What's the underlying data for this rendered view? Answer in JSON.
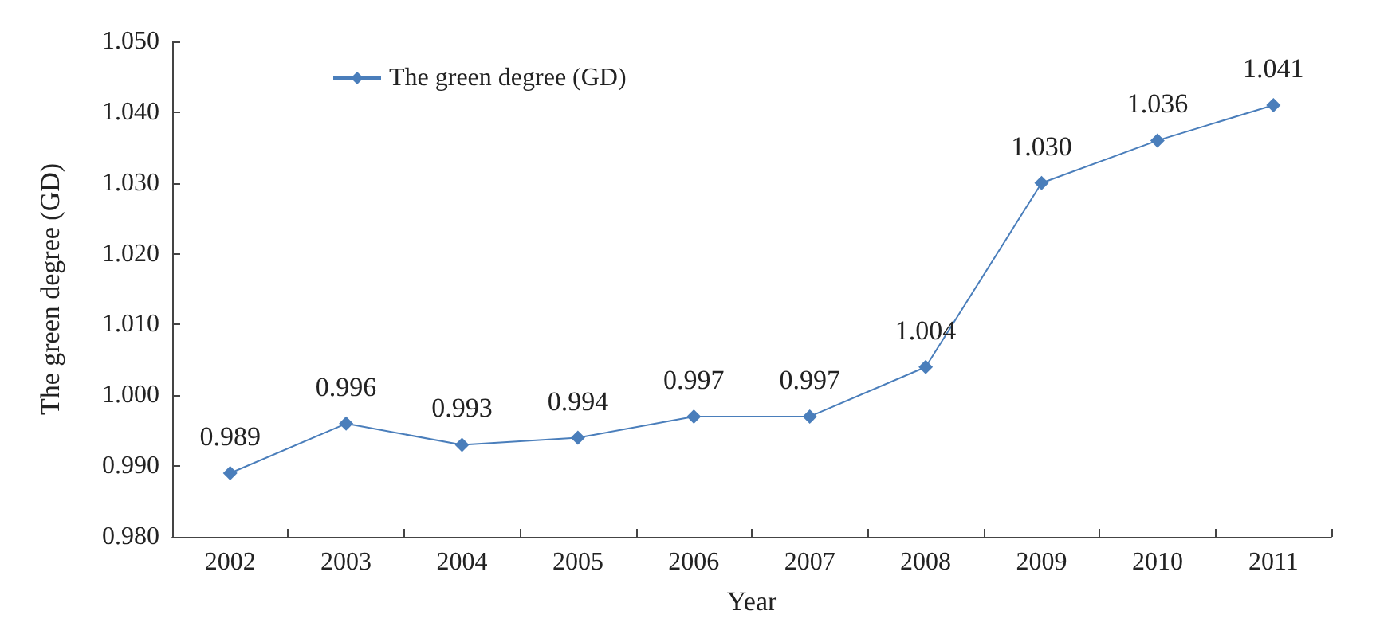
{
  "chart_data": {
    "type": "line",
    "xlabel": "Year",
    "ylabel": "The green degree (GD)",
    "categories": [
      "2002",
      "2003",
      "2004",
      "2005",
      "2006",
      "2007",
      "2008",
      "2009",
      "2010",
      "2011"
    ],
    "series": [
      {
        "name": "The green degree (GD)",
        "color": "#4a7ebb",
        "values": [
          0.989,
          0.996,
          0.993,
          0.994,
          0.997,
          0.997,
          1.004,
          1.03,
          1.036,
          1.041
        ],
        "value_labels": [
          "0.989",
          "0.996",
          "0.993",
          "0.994",
          "0.997",
          "0.997",
          "1.004",
          "1.030",
          "1.036",
          "1.041"
        ]
      }
    ],
    "ylim": [
      0.98,
      1.05
    ],
    "yticks": [
      {
        "value": 0.98,
        "label": "0.980"
      },
      {
        "value": 0.99,
        "label": "0.990"
      },
      {
        "value": 1.0,
        "label": "1.000"
      },
      {
        "value": 1.01,
        "label": "1.010"
      },
      {
        "value": 1.02,
        "label": "1.020"
      },
      {
        "value": 1.03,
        "label": "1.030"
      },
      {
        "value": 1.04,
        "label": "1.040"
      },
      {
        "value": 1.05,
        "label": "1.050"
      }
    ],
    "grid": false,
    "legend": "top left",
    "marker": "diamond",
    "line_style": "solid"
  }
}
